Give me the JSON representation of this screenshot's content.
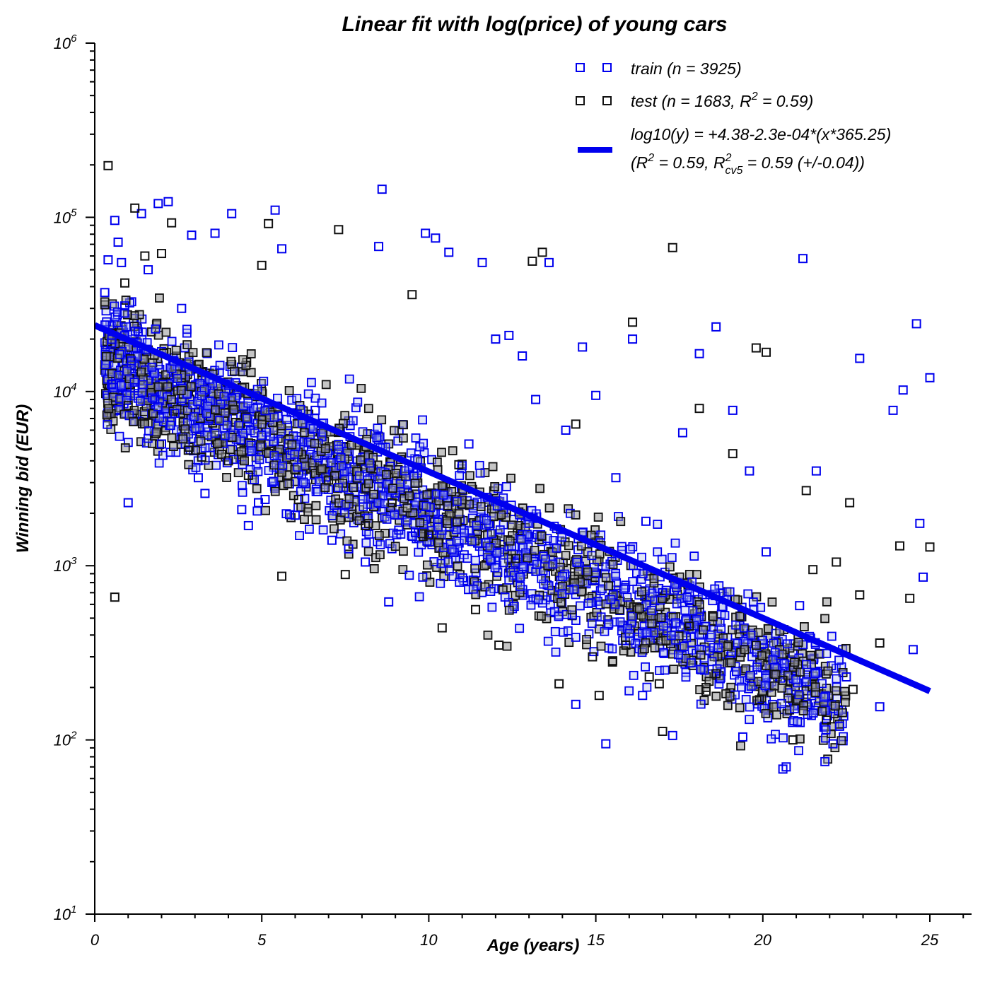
{
  "chart_data": {
    "type": "scatter",
    "title": "Linear fit with log(price) of young cars",
    "xlabel": "Age (years)",
    "ylabel": "Winning bid (EUR)",
    "xlim": [
      0,
      26.2
    ],
    "ylim": [
      10,
      1000000
    ],
    "yscale": "log",
    "grid": false,
    "legend_position": "top-right",
    "x_ticks": [
      "0",
      "5",
      "10",
      "15",
      "20",
      "25"
    ],
    "y_ticks": [
      {
        "base": "10",
        "exp": "1"
      },
      {
        "base": "10",
        "exp": "2"
      },
      {
        "base": "10",
        "exp": "3"
      },
      {
        "base": "10",
        "exp": "4"
      },
      {
        "base": "10",
        "exp": "5"
      },
      {
        "base": "10",
        "exp": "6"
      }
    ],
    "legend": {
      "train": "train (n = 3925)",
      "test_pre": "test (n = 1683, R",
      "test_sup": "2",
      "test_post": " = 0.59)",
      "fit_line1": "log10(y) = +4.38-2.3e-04*(x*365.25)",
      "fit_line2_a": "(R",
      "fit_line2_sup1": "2",
      "fit_line2_b": " = 0.59, R",
      "fit_line2_sup2": "2",
      "fit_line2_sub": "cv5",
      "fit_line2_c": " = 0.59 (+/-0.04))"
    },
    "fit": {
      "name": "log10(y) = +4.38-2.3e-04*(x*365.25)",
      "intercept_log10": 4.38,
      "slope_log10_per_day": -0.00023,
      "x_range": [
        0,
        25
      ],
      "color": "#0000ee"
    },
    "series": [
      {
        "name": "train (n = 3925)",
        "color": "#0000ee",
        "points": [
          [
            0.3,
            37000
          ],
          [
            0.4,
            57000
          ],
          [
            0.5,
            19000
          ],
          [
            0.5,
            11000
          ],
          [
            0.6,
            96000
          ],
          [
            0.7,
            72000
          ],
          [
            0.8,
            55000
          ],
          [
            0.9,
            31000
          ],
          [
            1.0,
            2300
          ],
          [
            1.1,
            15000
          ],
          [
            1.2,
            10500
          ],
          [
            1.3,
            22000
          ],
          [
            1.4,
            105000
          ],
          [
            1.6,
            50000
          ],
          [
            1.8,
            9000
          ],
          [
            1.9,
            120000
          ],
          [
            2.0,
            5000
          ],
          [
            2.2,
            123000
          ],
          [
            2.4,
            7500
          ],
          [
            2.6,
            30000
          ],
          [
            2.9,
            79000
          ],
          [
            3.1,
            3200
          ],
          [
            3.3,
            2600
          ],
          [
            3.6,
            81000
          ],
          [
            4.1,
            105000
          ],
          [
            4.4,
            2100
          ],
          [
            4.6,
            1700
          ],
          [
            4.9,
            2300
          ],
          [
            5.1,
            2400
          ],
          [
            5.4,
            110000
          ],
          [
            5.6,
            66000
          ],
          [
            6.0,
            1950
          ],
          [
            6.6,
            7800
          ],
          [
            7.1,
            1400
          ],
          [
            7.6,
            1250
          ],
          [
            8.1,
            1050
          ],
          [
            8.5,
            68000
          ],
          [
            8.6,
            145000
          ],
          [
            8.8,
            620
          ],
          [
            9.1,
            1600
          ],
          [
            9.6,
            1550
          ],
          [
            9.9,
            81000
          ],
          [
            10.2,
            76000
          ],
          [
            10.6,
            63000
          ],
          [
            11.2,
            5000
          ],
          [
            11.6,
            55000
          ],
          [
            12.0,
            20000
          ],
          [
            12.4,
            21000
          ],
          [
            12.8,
            16000
          ],
          [
            13.2,
            9000
          ],
          [
            13.6,
            55000
          ],
          [
            14.1,
            6000
          ],
          [
            14.6,
            18000
          ],
          [
            15.0,
            9500
          ],
          [
            15.3,
            95
          ],
          [
            15.6,
            3200
          ],
          [
            16.1,
            20000
          ],
          [
            16.5,
            1800
          ],
          [
            17.0,
            700
          ],
          [
            17.3,
            106
          ],
          [
            17.6,
            5800
          ],
          [
            18.1,
            16500
          ],
          [
            18.6,
            23500
          ],
          [
            19.1,
            7800
          ],
          [
            19.6,
            3500
          ],
          [
            20.1,
            1200
          ],
          [
            20.6,
            68
          ],
          [
            20.7,
            70
          ],
          [
            21.1,
            590
          ],
          [
            21.2,
            58000
          ],
          [
            21.6,
            3500
          ],
          [
            22.1,
            95
          ],
          [
            22.5,
            230
          ],
          [
            22.9,
            15500
          ],
          [
            23.5,
            155
          ],
          [
            23.9,
            7800
          ],
          [
            24.2,
            10200
          ],
          [
            24.6,
            24500
          ],
          [
            24.7,
            1750
          ],
          [
            25.0,
            12000
          ],
          [
            24.5,
            330
          ],
          [
            24.8,
            860
          ],
          [
            22.3,
            120
          ],
          [
            19.4,
            104
          ],
          [
            16.4,
            180
          ],
          [
            14.4,
            160
          ]
        ]
      },
      {
        "name": "test (n = 1683, R2 = 0.59)",
        "color": "#111111",
        "points": [
          [
            0.4,
            198000
          ],
          [
            0.6,
            660
          ],
          [
            0.9,
            42000
          ],
          [
            1.0,
            8300
          ],
          [
            1.2,
            113000
          ],
          [
            1.5,
            60000
          ],
          [
            2.0,
            62000
          ],
          [
            2.3,
            93000
          ],
          [
            2.8,
            4600
          ],
          [
            3.2,
            4200
          ],
          [
            4.0,
            4000
          ],
          [
            4.6,
            3300
          ],
          [
            5.0,
            53000
          ],
          [
            5.2,
            92000
          ],
          [
            5.6,
            870
          ],
          [
            6.1,
            2400
          ],
          [
            7.0,
            3100
          ],
          [
            7.3,
            85000
          ],
          [
            7.5,
            890
          ],
          [
            8.1,
            1700
          ],
          [
            8.9,
            2300
          ],
          [
            9.5,
            36000
          ],
          [
            10.0,
            1500
          ],
          [
            10.4,
            440
          ],
          [
            10.9,
            3800
          ],
          [
            11.4,
            560
          ],
          [
            12.1,
            350
          ],
          [
            12.6,
            1100
          ],
          [
            13.1,
            56000
          ],
          [
            13.4,
            63000
          ],
          [
            13.9,
            210
          ],
          [
            14.4,
            6500
          ],
          [
            15.1,
            180
          ],
          [
            15.5,
            280
          ],
          [
            16.1,
            25000
          ],
          [
            16.6,
            230
          ],
          [
            17.0,
            112
          ],
          [
            17.3,
            67000
          ],
          [
            17.8,
            450
          ],
          [
            18.1,
            8000
          ],
          [
            18.6,
            240
          ],
          [
            19.1,
            4400
          ],
          [
            19.8,
            17800
          ],
          [
            20.1,
            16800
          ],
          [
            20.6,
            220
          ],
          [
            20.9,
            100
          ],
          [
            21.3,
            2700
          ],
          [
            21.5,
            950
          ],
          [
            21.9,
            130
          ],
          [
            22.2,
            1050
          ],
          [
            22.6,
            2300
          ],
          [
            22.9,
            680
          ],
          [
            23.5,
            360
          ],
          [
            24.1,
            1300
          ],
          [
            24.4,
            650
          ],
          [
            25.0,
            1280
          ],
          [
            22.7,
            195
          ],
          [
            19.9,
            170
          ],
          [
            18.3,
            190
          ],
          [
            16.9,
            210
          ],
          [
            15.9,
            350
          ],
          [
            14.9,
            300
          ]
        ]
      }
    ],
    "cloud": {
      "x_range": [
        0.3,
        22.5
      ],
      "center_log10_at_x0": 4.2,
      "slope_log10_per_year": -0.088,
      "spread_log10": 0.3
    }
  }
}
